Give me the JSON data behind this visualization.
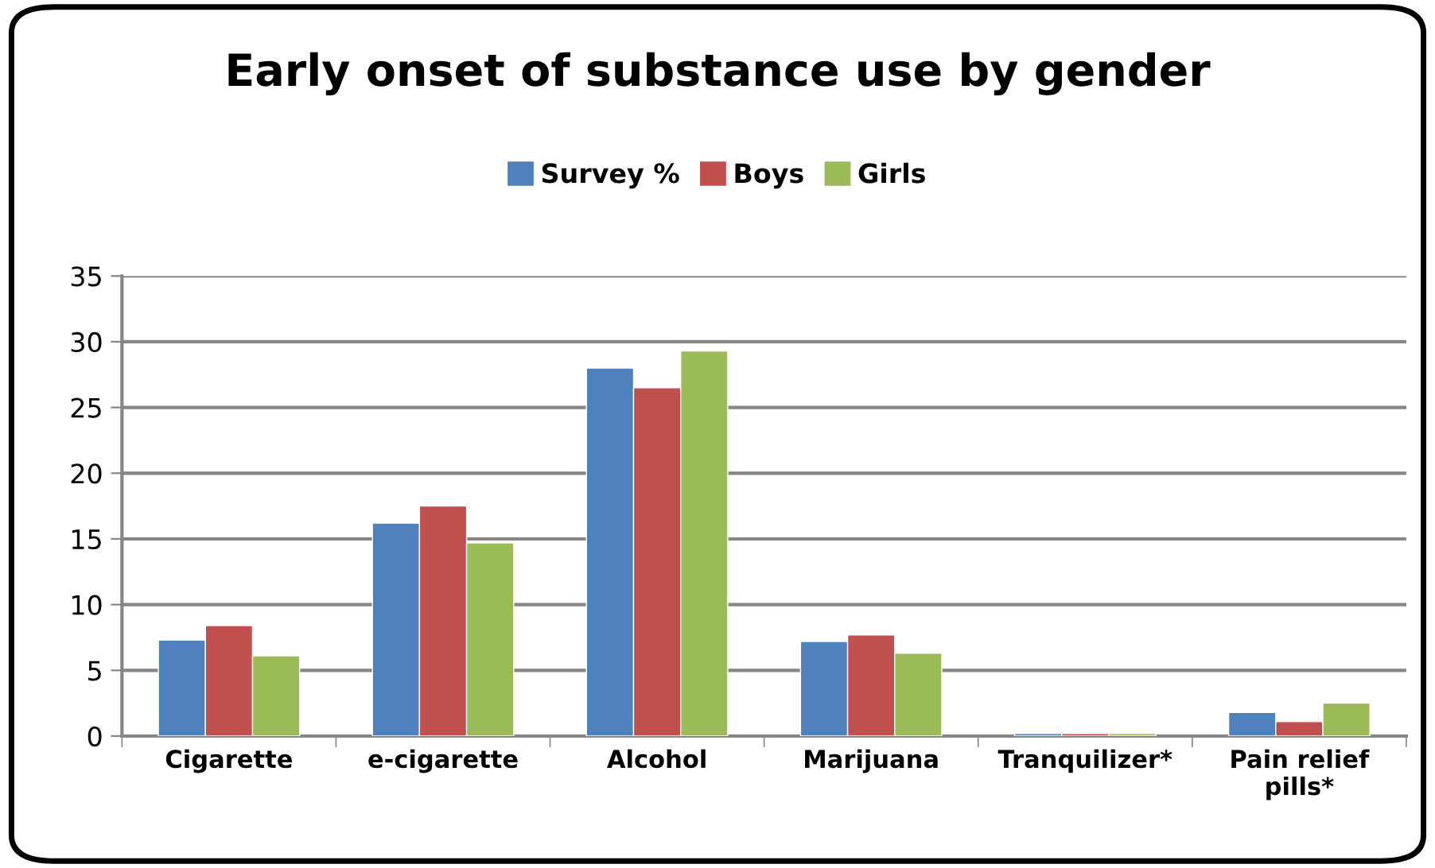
{
  "chart_data": {
    "type": "bar",
    "title": "Early onset of substance use by gender",
    "categories": [
      "Cigarette",
      "e-cigarette",
      "Alcohol",
      "Marijuana",
      "Tranquilizer*",
      "Pain relief\npills*"
    ],
    "series": [
      {
        "name": "Survey %",
        "color": "#4f81bd",
        "values": [
          7.3,
          16.2,
          28.0,
          7.2,
          0.2,
          1.8
        ]
      },
      {
        "name": "Boys",
        "color": "#c0504d",
        "values": [
          8.4,
          17.5,
          26.5,
          7.7,
          0.2,
          1.1
        ]
      },
      {
        "name": "Girls",
        "color": "#9bbb59",
        "values": [
          6.1,
          14.7,
          29.3,
          6.3,
          0.2,
          2.5
        ]
      }
    ],
    "ylim": [
      0,
      35
    ],
    "yticks": [
      0,
      5,
      10,
      15,
      20,
      25,
      30,
      35
    ],
    "grid": "y",
    "legend": "top"
  }
}
